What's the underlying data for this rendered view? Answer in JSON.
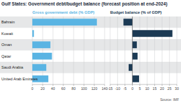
{
  "title": "Gulf States: Government debt/budget balance (forecast position at end-2024)",
  "source": "Source: IMF",
  "chart_data": [
    {
      "type": "bar",
      "orientation": "horizontal",
      "title": "Gross government debt (% GDP)",
      "categories": [
        "Bahrain",
        "Kuwait",
        "Oman",
        "Qatar",
        "Saudi Arabia",
        "United Arab Emirates"
      ],
      "values": [
        125,
        3,
        35,
        38,
        27,
        31
      ],
      "color": "#5ab4e3",
      "xlim": [
        0,
        140
      ],
      "xticks": [
        0,
        20,
        40,
        60,
        80,
        100,
        120,
        140
      ],
      "grid": true
    },
    {
      "type": "bar",
      "orientation": "horizontal",
      "title": "Budget balance (% of GDP)",
      "categories": [
        "Bahrain",
        "Kuwait",
        "Oman",
        "Qatar",
        "Saudi Arabia",
        "United Arab Emirates"
      ],
      "values": [
        -6,
        27,
        3,
        3.5,
        -2.5,
        4.5
      ],
      "color": "#1c3a54",
      "xlim": [
        -15,
        30
      ],
      "xticks": [
        -15,
        -10,
        -5,
        0,
        5,
        10,
        15,
        20,
        25,
        30
      ],
      "grid": true,
      "tick_labels": "x"
    }
  ]
}
